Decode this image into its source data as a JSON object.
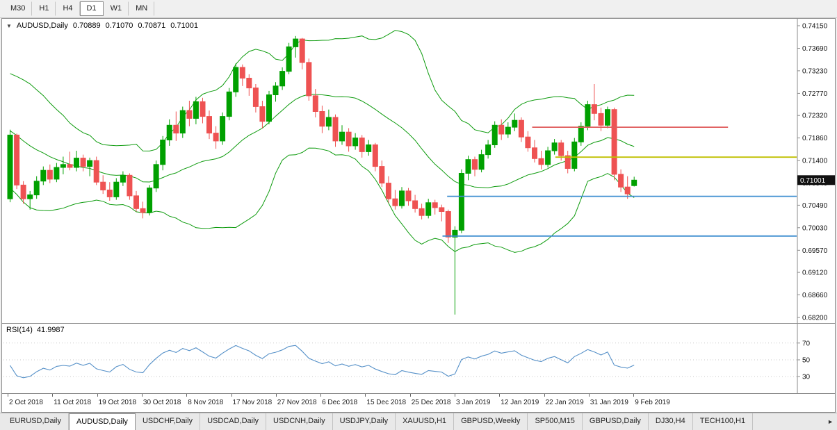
{
  "toolbar": {
    "periods": [
      {
        "label": "M30",
        "active": false
      },
      {
        "label": "H1",
        "active": false
      },
      {
        "label": "H4",
        "active": false
      },
      {
        "label": "D1",
        "active": true
      },
      {
        "label": "W1",
        "active": false
      },
      {
        "label": "MN",
        "active": false
      }
    ]
  },
  "chart": {
    "info": {
      "collapse_icon": "▼",
      "symbol_period": "AUDUSD,Daily",
      "open": "0.70889",
      "high": "0.71070",
      "low": "0.70871",
      "close": "0.71001"
    },
    "rsi": {
      "name": "RSI(14)",
      "value": "41.9987"
    }
  },
  "chart_data": [
    {
      "type": "candlestick",
      "title": "AUDUSD,Daily",
      "ylim": [
        0.682,
        0.7415
      ],
      "y_ticks": [
        0.7415,
        0.7369,
        0.7323,
        0.7277,
        0.7232,
        0.7186,
        0.714,
        0.7094,
        0.7049,
        0.7003,
        0.6957,
        0.6912,
        0.6866,
        0.682
      ],
      "x_tick_labels": [
        "2 Oct 2018",
        "11 Oct 2018",
        "19 Oct 2018",
        "30 Oct 2018",
        "8 Nov 2018",
        "17 Nov 2018",
        "27 Nov 2018",
        "6 Dec 2018",
        "15 Dec 2018",
        "25 Dec 2018",
        "3 Jan 2019",
        "12 Jan 2019",
        "22 Jan 2019",
        "31 Jan 2019",
        "9 Feb 2019"
      ],
      "colors": {
        "up": "#00a000",
        "down": "#ee5252",
        "axis": "#8a8a8a",
        "badge_bg": "#111111",
        "badge_text": "#ffffff"
      },
      "candles_ohlc": [
        [
          0.7062,
          0.7203,
          0.7055,
          0.7192
        ],
        [
          0.7192,
          0.7195,
          0.7082,
          0.709
        ],
        [
          0.709,
          0.7098,
          0.7052,
          0.7062
        ],
        [
          0.7062,
          0.7078,
          0.704,
          0.707
        ],
        [
          0.707,
          0.7108,
          0.7062,
          0.7098
        ],
        [
          0.7098,
          0.7128,
          0.709,
          0.712
        ],
        [
          0.712,
          0.7132,
          0.7094,
          0.7102
        ],
        [
          0.7102,
          0.7135,
          0.7096,
          0.7126
        ],
        [
          0.7126,
          0.7148,
          0.7112,
          0.7132
        ],
        [
          0.7132,
          0.7158,
          0.712,
          0.7126
        ],
        [
          0.7126,
          0.716,
          0.7118,
          0.7145
        ],
        [
          0.7145,
          0.7152,
          0.7118,
          0.7128
        ],
        [
          0.7128,
          0.7146,
          0.7108,
          0.714
        ],
        [
          0.714,
          0.7148,
          0.709,
          0.7096
        ],
        [
          0.7096,
          0.711,
          0.7072,
          0.708
        ],
        [
          0.708,
          0.7096,
          0.7058,
          0.7066
        ],
        [
          0.7066,
          0.7104,
          0.706,
          0.7096
        ],
        [
          0.7096,
          0.7118,
          0.7088,
          0.711
        ],
        [
          0.711,
          0.7114,
          0.706,
          0.7068
        ],
        [
          0.7068,
          0.7078,
          0.7036,
          0.7042
        ],
        [
          0.7042,
          0.7056,
          0.7022,
          0.7034
        ],
        [
          0.7034,
          0.709,
          0.7028,
          0.7084
        ],
        [
          0.7084,
          0.714,
          0.7076,
          0.7132
        ],
        [
          0.7132,
          0.719,
          0.712,
          0.7182
        ],
        [
          0.7182,
          0.7224,
          0.717,
          0.7212
        ],
        [
          0.7212,
          0.724,
          0.718,
          0.7196
        ],
        [
          0.7196,
          0.725,
          0.7186,
          0.7242
        ],
        [
          0.7242,
          0.7262,
          0.721,
          0.7226
        ],
        [
          0.7226,
          0.727,
          0.7214,
          0.726
        ],
        [
          0.726,
          0.7268,
          0.7216,
          0.723
        ],
        [
          0.723,
          0.7242,
          0.7184,
          0.7196
        ],
        [
          0.7196,
          0.721,
          0.7164,
          0.718
        ],
        [
          0.718,
          0.7238,
          0.7172,
          0.723
        ],
        [
          0.723,
          0.7288,
          0.7222,
          0.728
        ],
        [
          0.728,
          0.7338,
          0.727,
          0.733
        ],
        [
          0.733,
          0.7336,
          0.7292,
          0.7308
        ],
        [
          0.7308,
          0.7316,
          0.7272,
          0.7288
        ],
        [
          0.7288,
          0.7296,
          0.7238,
          0.725
        ],
        [
          0.725,
          0.7262,
          0.7206,
          0.722
        ],
        [
          0.722,
          0.7282,
          0.7214,
          0.7274
        ],
        [
          0.7274,
          0.73,
          0.726,
          0.7292
        ],
        [
          0.7292,
          0.733,
          0.7284,
          0.7322
        ],
        [
          0.7322,
          0.738,
          0.7316,
          0.7372
        ],
        [
          0.7372,
          0.7394,
          0.735,
          0.7388
        ],
        [
          0.7388,
          0.739,
          0.7326,
          0.734
        ],
        [
          0.734,
          0.7348,
          0.7262,
          0.7272
        ],
        [
          0.7272,
          0.7286,
          0.7228,
          0.724
        ],
        [
          0.724,
          0.7252,
          0.7196,
          0.721
        ],
        [
          0.721,
          0.7244,
          0.7202,
          0.7228
        ],
        [
          0.7228,
          0.7234,
          0.7168,
          0.718
        ],
        [
          0.718,
          0.7212,
          0.7172,
          0.7198
        ],
        [
          0.7198,
          0.7206,
          0.7158,
          0.717
        ],
        [
          0.717,
          0.7196,
          0.7162,
          0.7186
        ],
        [
          0.7186,
          0.7192,
          0.7146,
          0.7158
        ],
        [
          0.7158,
          0.7182,
          0.715,
          0.7172
        ],
        [
          0.7172,
          0.7176,
          0.7118,
          0.7128
        ],
        [
          0.7128,
          0.714,
          0.7086,
          0.7094
        ],
        [
          0.7094,
          0.7108,
          0.7054,
          0.7062
        ],
        [
          0.7062,
          0.708,
          0.704,
          0.7048
        ],
        [
          0.7048,
          0.7086,
          0.7042,
          0.7078
        ],
        [
          0.7078,
          0.7084,
          0.7048,
          0.7058
        ],
        [
          0.7058,
          0.707,
          0.7034,
          0.7042
        ],
        [
          0.7042,
          0.7052,
          0.702,
          0.7028
        ],
        [
          0.7028,
          0.7062,
          0.7022,
          0.7054
        ],
        [
          0.7054,
          0.706,
          0.703,
          0.7044
        ],
        [
          0.7044,
          0.705,
          0.7016,
          0.7036
        ],
        [
          0.7036,
          0.704,
          0.6972,
          0.6984
        ],
        [
          0.6984,
          0.7006,
          0.6826,
          0.6998
        ],
        [
          0.6998,
          0.7122,
          0.6992,
          0.7114
        ],
        [
          0.7114,
          0.715,
          0.71,
          0.7142
        ],
        [
          0.7142,
          0.7148,
          0.7108,
          0.7122
        ],
        [
          0.7122,
          0.7162,
          0.7116,
          0.7152
        ],
        [
          0.7152,
          0.7182,
          0.7144,
          0.7172
        ],
        [
          0.7172,
          0.722,
          0.7166,
          0.7212
        ],
        [
          0.7212,
          0.7224,
          0.7182,
          0.7194
        ],
        [
          0.7194,
          0.7218,
          0.7186,
          0.7208
        ],
        [
          0.7208,
          0.7236,
          0.72,
          0.7222
        ],
        [
          0.7222,
          0.7228,
          0.7178,
          0.7188
        ],
        [
          0.7188,
          0.72,
          0.7158,
          0.7166
        ],
        [
          0.7166,
          0.7182,
          0.7136,
          0.7144
        ],
        [
          0.7144,
          0.716,
          0.7122,
          0.7132
        ],
        [
          0.7132,
          0.7168,
          0.7126,
          0.716
        ],
        [
          0.716,
          0.7184,
          0.7152,
          0.7176
        ],
        [
          0.7176,
          0.7182,
          0.714,
          0.715
        ],
        [
          0.715,
          0.716,
          0.7114,
          0.7124
        ],
        [
          0.7124,
          0.7186,
          0.7118,
          0.7178
        ],
        [
          0.7178,
          0.7218,
          0.717,
          0.721
        ],
        [
          0.721,
          0.7262,
          0.7202,
          0.7254
        ],
        [
          0.7254,
          0.7296,
          0.7222,
          0.7236
        ],
        [
          0.7236,
          0.7248,
          0.72,
          0.7212
        ],
        [
          0.7212,
          0.725,
          0.7206,
          0.7244
        ],
        [
          0.7244,
          0.7248,
          0.71,
          0.7112
        ],
        [
          0.7112,
          0.7122,
          0.7076,
          0.7086
        ],
        [
          0.7086,
          0.7108,
          0.7062,
          0.7072
        ],
        [
          0.70889,
          0.7107,
          0.70871,
          0.71001
        ]
      ],
      "overlays": {
        "bollinger": {
          "period": 20,
          "deviation": 2,
          "color": "#0d9b0d",
          "seed_closes": [
            0.728,
            0.7285,
            0.727,
            0.7262,
            0.7248,
            0.7255,
            0.7238,
            0.7225,
            0.7232,
            0.721,
            0.7192,
            0.7175,
            0.7198,
            0.7165,
            0.714,
            0.7118,
            0.7098,
            0.7108,
            0.7122
          ]
        },
        "hlines": [
          {
            "id": "red-resistance",
            "price": 0.7208,
            "bar_from": 79,
            "bar_to": 108.5,
            "extend_to_axis": false,
            "color": "#e05c5c"
          },
          {
            "id": "yellow-resistance",
            "price": 0.7147,
            "bar_from": 82.5,
            "bar_to": null,
            "extend_to_axis": true,
            "color": "#c0c000"
          },
          {
            "id": "blue-support-upper",
            "price": 0.7067,
            "bar_from": 66.2,
            "bar_to": null,
            "extend_to_axis": true,
            "color": "#3e8ed0"
          },
          {
            "id": "blue-support-lower",
            "price": 0.6986,
            "bar_from": 65.5,
            "bar_to": null,
            "extend_to_axis": true,
            "color": "#3e8ed0"
          }
        ],
        "current_price": 0.71001
      }
    },
    {
      "type": "line",
      "name": "RSI(14)",
      "period": 14,
      "last_value": 41.9987,
      "levels": [
        70,
        50,
        30
      ],
      "color": "#5590c8"
    }
  ],
  "tabbar": {
    "scroll_right_icon": "►",
    "tabs": [
      {
        "label": "EURUSD,Daily",
        "active": false
      },
      {
        "label": "AUDUSD,Daily",
        "active": true
      },
      {
        "label": "USDCHF,Daily",
        "active": false
      },
      {
        "label": "USDCAD,Daily",
        "active": false
      },
      {
        "label": "USDCNH,Daily",
        "active": false
      },
      {
        "label": "USDJPY,Daily",
        "active": false
      },
      {
        "label": "XAUUSD,H1",
        "active": false
      },
      {
        "label": "GBPUSD,Weekly",
        "active": false
      },
      {
        "label": "SP500,M15",
        "active": false
      },
      {
        "label": "GBPUSD,Daily",
        "active": false
      },
      {
        "label": "DJ30,H4",
        "active": false
      },
      {
        "label": "TECH100,H1",
        "active": false
      }
    ]
  }
}
